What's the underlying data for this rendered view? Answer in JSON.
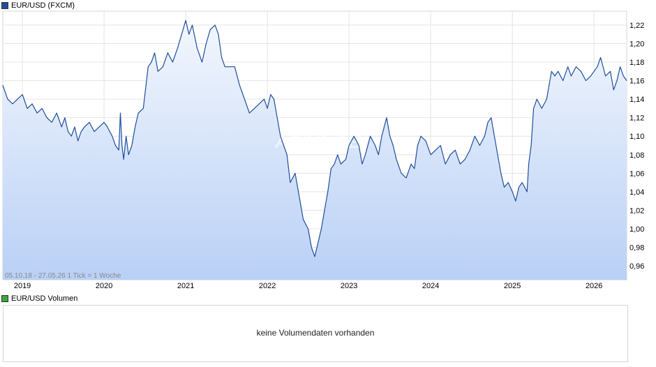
{
  "price_legend": {
    "label": "EUR/USD (FXCM)",
    "color": "#1f4e9e"
  },
  "volume_legend": {
    "label": "EUR/USD Volumen",
    "color": "#3aa83a"
  },
  "info_text": "05.10.18 - 27.05.26   1 Tick = 1 Woche",
  "watermark": "ARIVA.DE",
  "volume_message": "keine Volumendaten vorhanden",
  "chart_data": {
    "type": "area",
    "series": [
      {
        "name": "EUR/USD (FXCM)",
        "color": "#1f4e9e",
        "x": [
          2018.76,
          2018.82,
          2018.88,
          2018.94,
          2019.0,
          2019.06,
          2019.12,
          2019.18,
          2019.24,
          2019.3,
          2019.36,
          2019.42,
          2019.48,
          2019.52,
          2019.56,
          2019.6,
          2019.64,
          2019.68,
          2019.72,
          2019.76,
          2019.82,
          2019.88,
          2019.94,
          2020.0,
          2020.04,
          2020.1,
          2020.14,
          2020.18,
          2020.2,
          2020.22,
          2020.24,
          2020.27,
          2020.3,
          2020.34,
          2020.38,
          2020.42,
          2020.48,
          2020.54,
          2020.58,
          2020.62,
          2020.66,
          2020.72,
          2020.78,
          2020.84,
          2020.9,
          2020.95,
          2021.0,
          2021.04,
          2021.08,
          2021.14,
          2021.2,
          2021.25,
          2021.3,
          2021.36,
          2021.4,
          2021.44,
          2021.48,
          2021.54,
          2021.6,
          2021.66,
          2021.72,
          2021.78,
          2021.84,
          2021.9,
          2021.96,
          2022.0,
          2022.04,
          2022.08,
          2022.12,
          2022.16,
          2022.2,
          2022.24,
          2022.28,
          2022.34,
          2022.38,
          2022.44,
          2022.5,
          2022.54,
          2022.58,
          2022.62,
          2022.66,
          2022.7,
          2022.74,
          2022.78,
          2022.82,
          2022.86,
          2022.9,
          2022.96,
          2023.0,
          2023.06,
          2023.12,
          2023.16,
          2023.2,
          2023.26,
          2023.32,
          2023.36,
          2023.4,
          2023.46,
          2023.5,
          2023.54,
          2023.58,
          2023.64,
          2023.7,
          2023.76,
          2023.8,
          2023.84,
          2023.88,
          2023.94,
          2024.0,
          2024.06,
          2024.12,
          2024.18,
          2024.24,
          2024.3,
          2024.36,
          2024.42,
          2024.48,
          2024.54,
          2024.6,
          2024.66,
          2024.7,
          2024.74,
          2024.78,
          2024.82,
          2024.86,
          2024.9,
          2024.95,
          2025.0,
          2025.04,
          2025.08,
          2025.12,
          2025.18,
          2025.2,
          2025.23,
          2025.26,
          2025.3,
          2025.36,
          2025.42,
          2025.48,
          2025.52,
          2025.56,
          2025.62,
          2025.68,
          2025.72,
          2025.78,
          2025.84,
          2025.9,
          2025.96,
          2026.0,
          2026.04,
          2026.08,
          2026.14,
          2026.2,
          2026.24,
          2026.28,
          2026.32,
          2026.36,
          2026.4
        ],
        "y": [
          1.155,
          1.14,
          1.135,
          1.14,
          1.145,
          1.13,
          1.135,
          1.125,
          1.13,
          1.12,
          1.115,
          1.125,
          1.11,
          1.12,
          1.105,
          1.1,
          1.11,
          1.095,
          1.105,
          1.11,
          1.115,
          1.105,
          1.11,
          1.115,
          1.11,
          1.1,
          1.09,
          1.085,
          1.125,
          1.09,
          1.075,
          1.1,
          1.08,
          1.09,
          1.11,
          1.125,
          1.13,
          1.175,
          1.18,
          1.19,
          1.17,
          1.175,
          1.19,
          1.18,
          1.195,
          1.21,
          1.225,
          1.21,
          1.22,
          1.195,
          1.18,
          1.2,
          1.215,
          1.22,
          1.21,
          1.185,
          1.175,
          1.175,
          1.175,
          1.155,
          1.14,
          1.125,
          1.13,
          1.135,
          1.14,
          1.13,
          1.145,
          1.14,
          1.12,
          1.1,
          1.09,
          1.08,
          1.05,
          1.06,
          1.04,
          1.01,
          1.0,
          0.98,
          0.97,
          0.985,
          1.0,
          1.02,
          1.04,
          1.065,
          1.07,
          1.08,
          1.07,
          1.075,
          1.09,
          1.1,
          1.09,
          1.07,
          1.08,
          1.1,
          1.09,
          1.08,
          1.1,
          1.12,
          1.1,
          1.09,
          1.075,
          1.06,
          1.055,
          1.07,
          1.065,
          1.09,
          1.1,
          1.095,
          1.08,
          1.085,
          1.09,
          1.07,
          1.08,
          1.085,
          1.07,
          1.075,
          1.085,
          1.1,
          1.09,
          1.1,
          1.115,
          1.12,
          1.1,
          1.08,
          1.06,
          1.045,
          1.05,
          1.04,
          1.03,
          1.045,
          1.05,
          1.04,
          1.07,
          1.09,
          1.13,
          1.14,
          1.13,
          1.14,
          1.17,
          1.165,
          1.17,
          1.16,
          1.175,
          1.165,
          1.175,
          1.17,
          1.16,
          1.165,
          1.17,
          1.175,
          1.185,
          1.165,
          1.17,
          1.15,
          1.16,
          1.175,
          1.165,
          1.16
        ]
      }
    ],
    "xlim": [
      2018.76,
      2026.4
    ],
    "ylim": [
      0.945,
      1.235
    ],
    "x_ticks": [
      2019,
      2020,
      2021,
      2022,
      2023,
      2024,
      2025,
      2026
    ],
    "x_tick_labels": [
      "2019",
      "2020",
      "2021",
      "2022",
      "2023",
      "2024",
      "2025",
      "2026"
    ],
    "y_ticks": [
      0.96,
      0.98,
      1.0,
      1.02,
      1.04,
      1.06,
      1.08,
      1.1,
      1.12,
      1.14,
      1.16,
      1.18,
      1.2,
      1.22
    ],
    "y_tick_labels": [
      "0,96",
      "0,98",
      "1,00",
      "1,02",
      "1,04",
      "1,06",
      "1,08",
      "1,10",
      "1,12",
      "1,14",
      "1,16",
      "1,18",
      "1,20",
      "1,22"
    ],
    "grid": true,
    "fill_top_color": "#f3f7fd",
    "fill_bottom_color": "#b9d0f6"
  }
}
